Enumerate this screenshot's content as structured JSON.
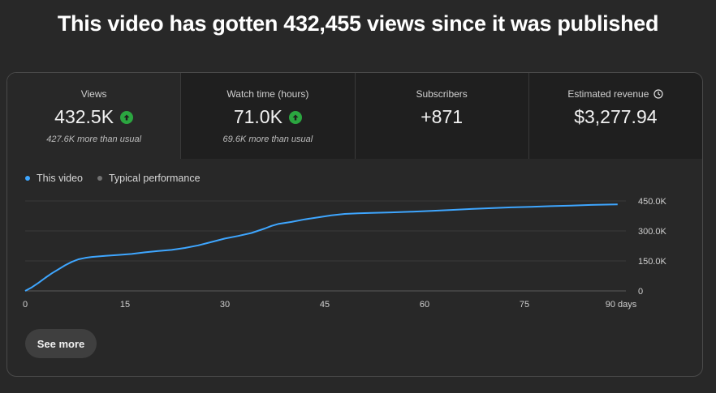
{
  "headline": "This video has gotten 432,455 views since it was published",
  "metrics": [
    {
      "label": "Views",
      "value": "432.5K",
      "trend": "up",
      "note": "427.6K more than usual"
    },
    {
      "label": "Watch time (hours)",
      "value": "71.0K",
      "trend": "up",
      "note": "69.6K more than usual"
    },
    {
      "label": "Subscribers",
      "value": "+871",
      "trend": "",
      "note": ""
    },
    {
      "label": "Estimated revenue",
      "value": "$3,277.94",
      "trend": "",
      "note": "",
      "icon": "clock-icon"
    }
  ],
  "legend": [
    {
      "label": "This video",
      "color": "#3ea6ff"
    },
    {
      "label": "Typical performance",
      "color": "#717171"
    }
  ],
  "see_more_label": "See more",
  "chart_data": {
    "type": "line",
    "title": "",
    "xlabel": "",
    "ylabel": "",
    "x_ticks": [
      "0",
      "15",
      "30",
      "45",
      "60",
      "75",
      "90 days"
    ],
    "x_tick_values": [
      0,
      15,
      30,
      45,
      60,
      75,
      90
    ],
    "y_ticks": [
      "0",
      "150.0K",
      "300.0K",
      "450.0K"
    ],
    "y_tick_values": [
      0,
      150000,
      300000,
      450000
    ],
    "xlim": [
      0,
      90
    ],
    "ylim": [
      0,
      450000
    ],
    "grid": true,
    "series": [
      {
        "name": "This video",
        "color": "#3ea6ff",
        "x": [
          0,
          1,
          2,
          3,
          4,
          5,
          6,
          7,
          8,
          9,
          10,
          12,
          14,
          16,
          18,
          20,
          22,
          24,
          26,
          28,
          30,
          32,
          34,
          36,
          37,
          38,
          40,
          42,
          44,
          46,
          48,
          50,
          52,
          55,
          58,
          61,
          64,
          67,
          70,
          73,
          76,
          79,
          82,
          85,
          88,
          89
        ],
        "y": [
          0,
          18000,
          40000,
          65000,
          88000,
          108000,
          128000,
          145000,
          158000,
          165000,
          170000,
          175000,
          180000,
          185000,
          193000,
          200000,
          205000,
          215000,
          228000,
          245000,
          262000,
          275000,
          290000,
          312000,
          325000,
          335000,
          345000,
          358000,
          368000,
          378000,
          385000,
          388000,
          390000,
          393000,
          396000,
          400000,
          405000,
          410000,
          414000,
          418000,
          421000,
          424000,
          427000,
          430000,
          432000,
          432455
        ]
      }
    ]
  }
}
